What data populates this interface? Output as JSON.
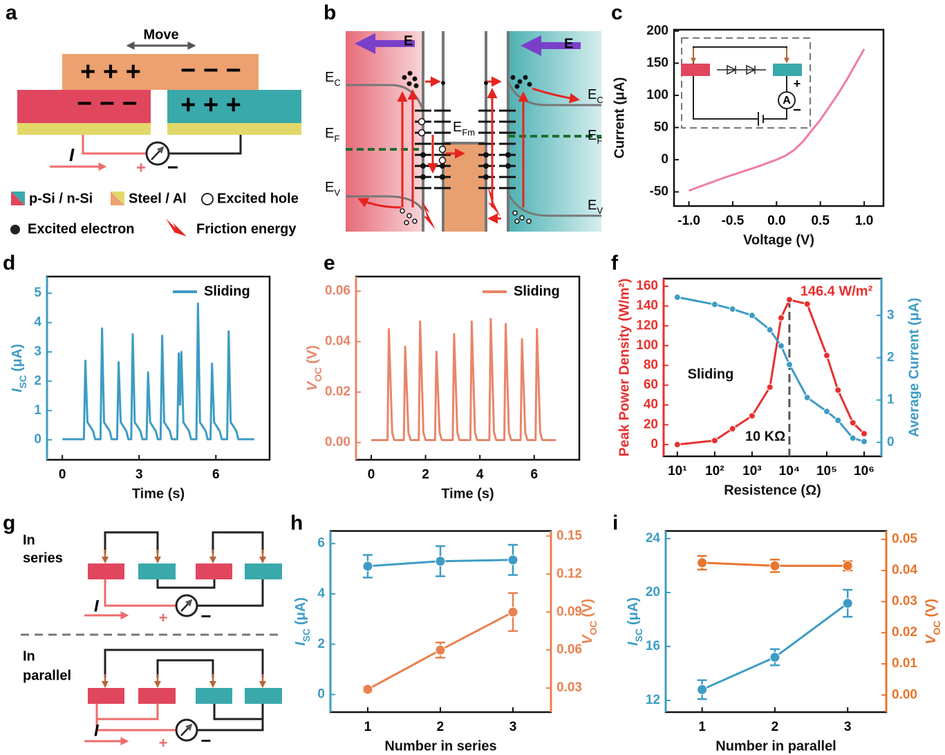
{
  "panel_labels": [
    "a",
    "b",
    "c",
    "d",
    "e",
    "f",
    "g",
    "h",
    "i"
  ],
  "diagram_a": {
    "move": "Move",
    "top_plus": "+ + +",
    "top_minus": "− − −",
    "left": "− − −",
    "right": "+ + +",
    "current": "I",
    "plus": "+",
    "minus": "−",
    "legend": [
      "p-Si / n-Si",
      "Steel / Al",
      "Excited hole",
      "Excited electron",
      "Friction energy"
    ]
  },
  "diagram_b": {
    "field": "E",
    "levels": [
      {
        "main": "E",
        "sub": "C"
      },
      {
        "main": "E",
        "sub": "F"
      },
      {
        "main": "E",
        "sub": "V"
      },
      {
        "main": "E",
        "sub": "C"
      },
      {
        "main": "E",
        "sub": "F"
      },
      {
        "main": "E",
        "sub": "V"
      },
      {
        "main": "E",
        "sub": "Fm"
      }
    ]
  },
  "diagram_g": {
    "series": [
      "In",
      "series"
    ],
    "parallel": [
      "In",
      "parallel"
    ],
    "current": "I",
    "plus": "+",
    "minus": "−"
  },
  "chart_data": [
    {
      "type": "line",
      "xlabel": "Voltage (V)",
      "ylabel": "Current (μA)",
      "inset_labels": [
        "A",
        "+",
        "−"
      ],
      "xlim": [
        -1.17,
        1.22
      ],
      "ylim": [
        -72,
        202
      ],
      "xticks": [
        {
          "value": -1,
          "label": "-1.0"
        },
        -0.5,
        {
          "value": 0,
          "label": "0.0"
        },
        0.5,
        {
          "value": 1,
          "label": "1.0"
        }
      ],
      "yticks": [
        -50,
        0,
        50,
        100,
        150,
        200
      ],
      "x": [
        -1.0,
        -0.8,
        -0.6,
        -0.4,
        -0.2,
        0.0,
        0.1,
        0.2,
        0.3,
        0.4,
        0.5,
        0.6,
        0.7,
        0.8,
        0.9,
        1.0
      ],
      "series": [
        {
          "color": "#f07ca8",
          "values": [
            -48,
            -38,
            -28,
            -19,
            -10,
            0,
            6,
            15,
            28,
            45,
            62,
            82,
            102,
            124,
            148,
            172
          ]
        }
      ]
    },
    {
      "type": "line",
      "xlabel": "Time (s)",
      "ylabel": {
        "text": "I",
        "sub": "SC",
        "unit": "(μA)"
      },
      "y_color": "#3d9cc4",
      "legend": "upper right",
      "xlim": [
        -0.6,
        8.1
      ],
      "ylim": [
        -0.68,
        5.57
      ],
      "xticks": [
        0,
        3,
        6
      ],
      "yticks": [
        0,
        1,
        2,
        3,
        4,
        5
      ],
      "x": [
        0,
        0.84,
        0.9,
        0.98,
        1.2,
        1.28,
        1.49,
        1.55,
        1.63,
        1.85,
        1.93,
        2.14,
        2.2,
        2.28,
        2.5,
        2.58,
        2.69,
        2.75,
        2.83,
        3.05,
        3.13,
        3.29,
        3.35,
        3.43,
        3.65,
        3.73,
        3.84,
        3.9,
        3.98,
        4.2,
        4.28,
        4.49,
        4.55,
        4.6,
        4.65,
        4.73,
        4.95,
        5.03,
        5.24,
        5.3,
        5.38,
        5.6,
        5.68,
        5.79,
        5.85,
        5.93,
        6.15,
        6.23,
        6.44,
        6.5,
        6.58,
        6.8,
        6.88,
        7.5
      ],
      "series": [
        {
          "name": "Sliding",
          "color": "#3d9cc4",
          "values": [
            0.02,
            0.02,
            2.7,
            0.6,
            0.3,
            0.02,
            0.02,
            3.8,
            0.6,
            0.3,
            0.02,
            0.02,
            2.65,
            0.6,
            0.3,
            0.02,
            0.02,
            3.6,
            0.6,
            0.3,
            0.02,
            0.02,
            2.3,
            0.6,
            0.3,
            0.02,
            0.02,
            3.55,
            0.6,
            0.3,
            0.02,
            0.02,
            2.95,
            1.2,
            3.0,
            0.6,
            0.3,
            0.02,
            0.02,
            4.65,
            0.6,
            0.3,
            0.02,
            0.02,
            2.6,
            0.6,
            0.3,
            0.02,
            0.02,
            3.7,
            0.6,
            0.3,
            0.02,
            0.02
          ]
        }
      ]
    },
    {
      "type": "line",
      "xlabel": "Time (s)",
      "ylabel": {
        "text": "V",
        "sub": "OC",
        "unit": "(V)"
      },
      "y_color": "#e8866a",
      "legend": "upper right",
      "xlim": [
        -0.56,
        7.66
      ],
      "ylim": [
        -0.0068,
        0.0658
      ],
      "xticks": [
        0,
        2,
        4,
        6
      ],
      "yticks": [
        {
          "value": 0,
          "label": "0.00"
        },
        0.02,
        0.04,
        0.06
      ],
      "x": [
        0,
        0.6,
        0.65,
        0.77,
        0.85,
        1.2,
        1.25,
        1.37,
        1.45,
        1.75,
        1.8,
        1.92,
        2.0,
        2.35,
        2.4,
        2.52,
        2.6,
        3.0,
        3.05,
        3.17,
        3.25,
        3.65,
        3.7,
        3.82,
        3.9,
        4.35,
        4.4,
        4.52,
        4.6,
        4.9,
        4.95,
        5.07,
        5.15,
        5.5,
        5.55,
        5.67,
        5.75,
        6.05,
        6.1,
        6.22,
        6.3,
        6.8
      ],
      "series": [
        {
          "name": "Sliding",
          "color": "#e8866a",
          "values": [
            0.001,
            0.001,
            0.045,
            0.004,
            0.001,
            0.001,
            0.038,
            0.004,
            0.001,
            0.001,
            0.048,
            0.004,
            0.001,
            0.001,
            0.036,
            0.004,
            0.001,
            0.001,
            0.043,
            0.004,
            0.001,
            0.001,
            0.048,
            0.004,
            0.001,
            0.001,
            0.049,
            0.004,
            0.001,
            0.001,
            0.047,
            0.004,
            0.001,
            0.001,
            0.041,
            0.004,
            0.001,
            0.001,
            0.045,
            0.004,
            0.001,
            0.001
          ]
        }
      ]
    },
    {
      "type": "line",
      "xscale": "log",
      "markers": true,
      "xlabel": "Resistence (Ω)",
      "ylabel": "Peak Power Density (W/m²)",
      "y2label": "Average Current  (μA)",
      "y_color": "#e8302e",
      "y2_color": "#3d9cc4",
      "annotations": [
        "146.4 W/m²",
        "Sliding",
        "10 KΩ"
      ],
      "vline": 10000,
      "xlim": [
        4.3,
        2900000
      ],
      "ylim": [
        -11.9,
        167.7
      ],
      "y2lim": [
        -0.33,
        3.87
      ],
      "xticks": [
        {
          "value": 10,
          "label": "10¹"
        },
        {
          "value": 100,
          "label": "10²"
        },
        {
          "value": 1000,
          "label": "10³"
        },
        {
          "value": 10000,
          "label": "10⁴"
        },
        {
          "value": 100000,
          "label": "10⁵"
        },
        {
          "value": 1000000,
          "label": "10⁶"
        }
      ],
      "yticks": [
        0,
        20,
        40,
        60,
        80,
        100,
        120,
        140,
        160
      ],
      "y2ticks": [
        0,
        1,
        2,
        3
      ],
      "x": [
        10,
        100,
        300,
        1000,
        3000,
        6000,
        10000,
        30000,
        100000,
        200000,
        500000,
        1000000
      ],
      "series": [
        {
          "color": "#e8302e",
          "values": [
            0,
            4,
            16,
            29,
            58,
            128,
            146.4,
            142,
            90,
            55,
            22,
            11
          ]
        },
        {
          "color": "#3d9cc4",
          "axis": "y2",
          "values": [
            3.43,
            3.26,
            3.15,
            3.0,
            2.66,
            2.28,
            1.84,
            1.06,
            0.73,
            0.52,
            0.1,
            0.02
          ]
        }
      ]
    },
    {
      "type": "line",
      "markers": true,
      "xlabel": "Number in series",
      "ylabel": {
        "text": "I",
        "sub": "SC",
        "unit": "(μA)"
      },
      "y2label": {
        "text": "V",
        "sub": "OC",
        "unit": "(V)"
      },
      "y_color": "#3d9cc4",
      "y2_color": "#e8824f",
      "xlim": [
        0.486,
        3.524
      ],
      "ylim": [
        -0.7,
        6.5
      ],
      "y2lim": [
        0.011,
        0.154
      ],
      "xticks": [
        1,
        2,
        3
      ],
      "yticks": [
        0,
        2,
        4,
        6
      ],
      "y2ticks": [
        0.03,
        0.06,
        0.09,
        0.12,
        0.15
      ],
      "x": [
        1,
        2,
        3
      ],
      "series": [
        {
          "color": "#3d9cc4",
          "values": [
            5.1,
            5.3,
            5.35
          ],
          "errors": [
            0.45,
            0.6,
            0.6
          ]
        },
        {
          "color": "#e8824f",
          "axis": "y2",
          "values": [
            0.029,
            0.06,
            0.09
          ],
          "errors": [
            0.002,
            0.006,
            0.015
          ]
        }
      ]
    },
    {
      "type": "line",
      "markers": true,
      "xlabel": "Number in parallel",
      "ylabel": {
        "text": "I",
        "sub": "SC",
        "unit": "(μA)"
      },
      "y2label": {
        "text": "V",
        "sub": "OC",
        "unit": "(V)"
      },
      "y_color": "#3d9cc4",
      "y2_color": "#e8742e",
      "xlim": [
        0.5,
        3.53
      ],
      "ylim": [
        11.13,
        24.56
      ],
      "y2lim": [
        -0.0055,
        0.0527
      ],
      "xticks": [
        1,
        2,
        3
      ],
      "yticks": [
        12,
        16,
        20,
        24
      ],
      "y2ticks": [
        {
          "value": 0,
          "label": "0.00"
        },
        0.01,
        0.02,
        0.03,
        0.04,
        0.05
      ],
      "x": [
        1,
        2,
        3
      ],
      "series": [
        {
          "color": "#3d9cc4",
          "values": [
            12.8,
            15.2,
            19.2
          ],
          "errors": [
            0.7,
            0.6,
            1.0
          ]
        },
        {
          "color": "#e8742e",
          "axis": "y2",
          "values": [
            0.0425,
            0.0415,
            0.0415
          ],
          "errors": [
            0.0022,
            0.002,
            0.0015
          ]
        }
      ]
    }
  ]
}
